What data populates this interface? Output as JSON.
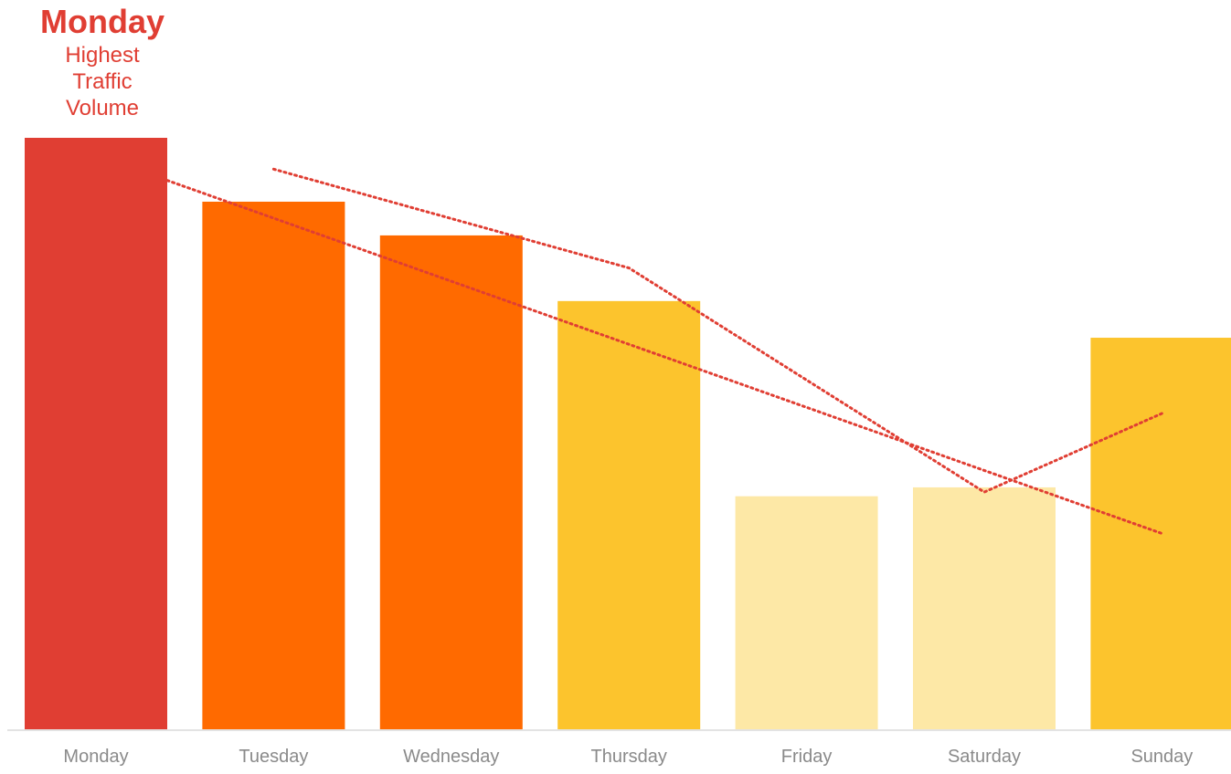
{
  "callout": {
    "title": "Monday",
    "subtitle": "Highest Traffic Volume"
  },
  "colors": {
    "accent": "#e03e33",
    "bar_highest": "#e03e33",
    "bar_high": "#ff6a00",
    "bar_mid": "#fcc42d",
    "bar_low": "#fde8a6",
    "axis_line": "#e3e3e3",
    "tick_label": "#8a8a8a",
    "trend_line": "#e03e33"
  },
  "chart_data": {
    "type": "bar",
    "title": "",
    "xlabel": "",
    "ylabel": "",
    "ylim": [
      0,
      100
    ],
    "grid": false,
    "legend": "none",
    "categories": [
      "Monday",
      "Tuesday",
      "Wednesday",
      "Thursday",
      "Friday",
      "Saturday",
      "Sunday"
    ],
    "values": [
      100,
      89.2,
      83.5,
      72.4,
      39.4,
      40.9,
      66.2
    ],
    "bar_color_keys": [
      "bar_highest",
      "bar_high",
      "bar_high",
      "bar_mid",
      "bar_low",
      "bar_low",
      "bar_mid"
    ],
    "overlays": [
      {
        "kind": "trend-line",
        "style": "dotted",
        "values": [
          92.8,
          33.1
        ]
      },
      {
        "kind": "moving-average",
        "style": "dotted",
        "values": [
          94.7,
          78.0,
          40.1,
          53.4
        ]
      }
    ]
  }
}
